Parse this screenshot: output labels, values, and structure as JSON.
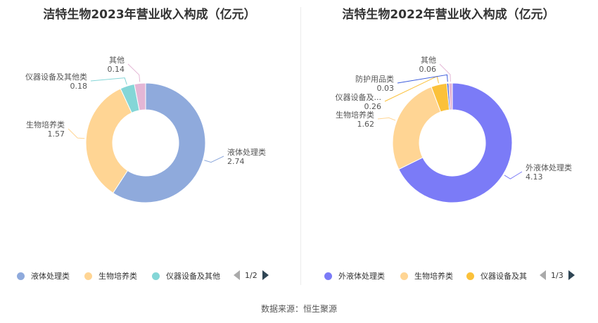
{
  "charts": [
    {
      "title": "洁特生物2023年营业收入构成（亿元）",
      "chart_data": {
        "type": "pie",
        "title": "洁特生物2023年营业收入构成（亿元）",
        "slices": [
          {
            "label": "液体处理类",
            "value": 2.74,
            "value_text": "2.74",
            "color": "#8faadc"
          },
          {
            "label": "生物培养类",
            "value": 1.57,
            "value_text": "1.57",
            "color": "#ffd594"
          },
          {
            "label": "仪器设备及其他类",
            "value": 0.18,
            "value_text": "0.18",
            "color": "#84d6d7"
          },
          {
            "label": "其他",
            "value": 0.14,
            "value_text": "0.14",
            "color": "#e4b6d5"
          }
        ]
      },
      "legend": {
        "items": [
          {
            "label": "液体处理类",
            "color": "#8faadc"
          },
          {
            "label": "生物培养类",
            "color": "#ffd594"
          },
          {
            "label": "仪器设备及其他",
            "color": "#84d6d7"
          }
        ],
        "page": "1/2"
      }
    },
    {
      "title": "洁特生物2022年营业收入构成（亿元）",
      "chart_data": {
        "type": "pie",
        "title": "洁特生物2022年营业收入构成（亿元）",
        "slices": [
          {
            "label": "外液体处理类",
            "value": 4.13,
            "value_text": "4.13",
            "color": "#7b7bf7"
          },
          {
            "label": "生物培养类",
            "value": 1.62,
            "value_text": "1.62",
            "color": "#ffd594"
          },
          {
            "label": "仪器设备及...",
            "value": 0.26,
            "value_text": "0.26",
            "color": "#fbc13a"
          },
          {
            "label": "防护用品类",
            "value": 0.03,
            "value_text": "0.03",
            "color": "#3b5bdb"
          },
          {
            "label": "其他",
            "value": 0.06,
            "value_text": "0.06",
            "color": "#e4b6d5"
          }
        ]
      },
      "legend": {
        "items": [
          {
            "label": "外液体处理类",
            "color": "#7b7bf7"
          },
          {
            "label": "生物培养类",
            "color": "#ffd594"
          },
          {
            "label": "仪器设备及其",
            "color": "#fbc13a"
          }
        ],
        "page": "1/3"
      }
    }
  ],
  "source": "数据来源：恒生聚源"
}
